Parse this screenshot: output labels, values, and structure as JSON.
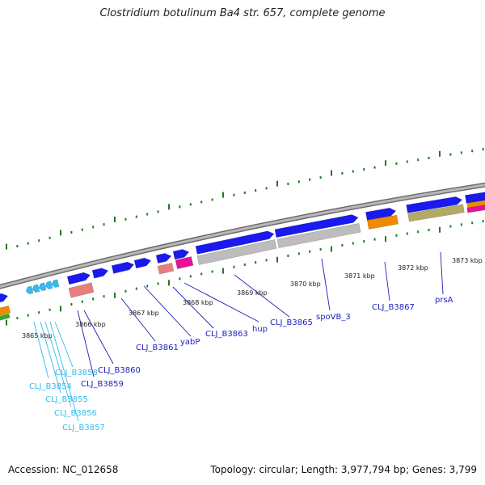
{
  "title": "Clostridium botulinum Ba4 str. 657, complete genome",
  "footer": {
    "accession": "Accession: NC_012658",
    "summary": "Topology: circular; Length: 3,977,794 bp; Genes: 3,799"
  },
  "colors": {
    "backbone": "#8c8c8c",
    "tick": "#1f7a1f",
    "gene_blue": "#1a1aee",
    "gene_cyan": "#33bbee",
    "gene_salmon": "#e87f7f",
    "gene_pink": "#e8109a",
    "gene_gray": "#bdbdbd",
    "gene_orange": "#f08a00",
    "gene_khaki": "#b3aa66",
    "label_blue": "#1e1ebe",
    "label_cyan": "#33bbee"
  },
  "kbp_labels": [
    "3865 kbp",
    "3866 kbp",
    "3867 kbp",
    "3868 kbp",
    "3869 kbp",
    "3870 kbp",
    "3871 kbp",
    "3872 kbp",
    "3873 kbp"
  ],
  "gene_labels": [
    {
      "text": "CLJ_B3854",
      "color": "cyan"
    },
    {
      "text": "CLJ_B3855",
      "color": "cyan"
    },
    {
      "text": "CLJ_B3856",
      "color": "cyan"
    },
    {
      "text": "CLJ_B3857",
      "color": "cyan"
    },
    {
      "text": "CLJ_B3858",
      "color": "cyan"
    },
    {
      "text": "CLJ_B3859",
      "color": "blue"
    },
    {
      "text": "CLJ_B3860",
      "color": "blue"
    },
    {
      "text": "CLJ_B3861",
      "color": "blue"
    },
    {
      "text": "yabP",
      "color": "blue"
    },
    {
      "text": "CLJ_B3863",
      "color": "blue"
    },
    {
      "text": "hup",
      "color": "blue"
    },
    {
      "text": "CLJ_B3865",
      "color": "blue"
    },
    {
      "text": "spoVB_3",
      "color": "blue"
    },
    {
      "text": "CLJ_B3867",
      "color": "blue"
    },
    {
      "text": "prsA",
      "color": "blue"
    }
  ]
}
